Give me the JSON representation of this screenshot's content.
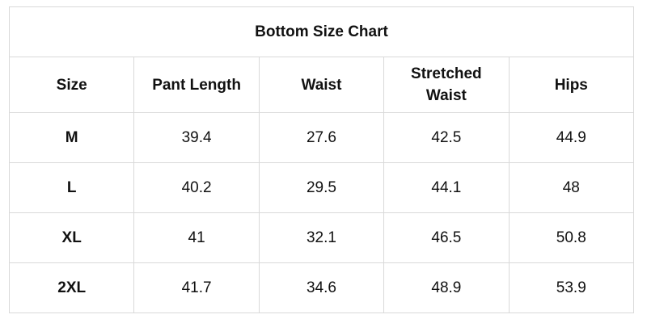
{
  "table": {
    "title": "Bottom Size Chart",
    "header": [
      "Size",
      "Pant Length",
      "Waist",
      "Stretched Waist",
      "Hips"
    ],
    "rows": [
      [
        "M",
        39.4,
        27.6,
        42.5,
        44.9
      ],
      [
        "L",
        40.2,
        29.5,
        44.1,
        48
      ],
      [
        "XL",
        41,
        32.1,
        46.5,
        50.8
      ],
      [
        "2XL",
        41.7,
        34.6,
        48.9,
        53.9
      ]
    ]
  }
}
